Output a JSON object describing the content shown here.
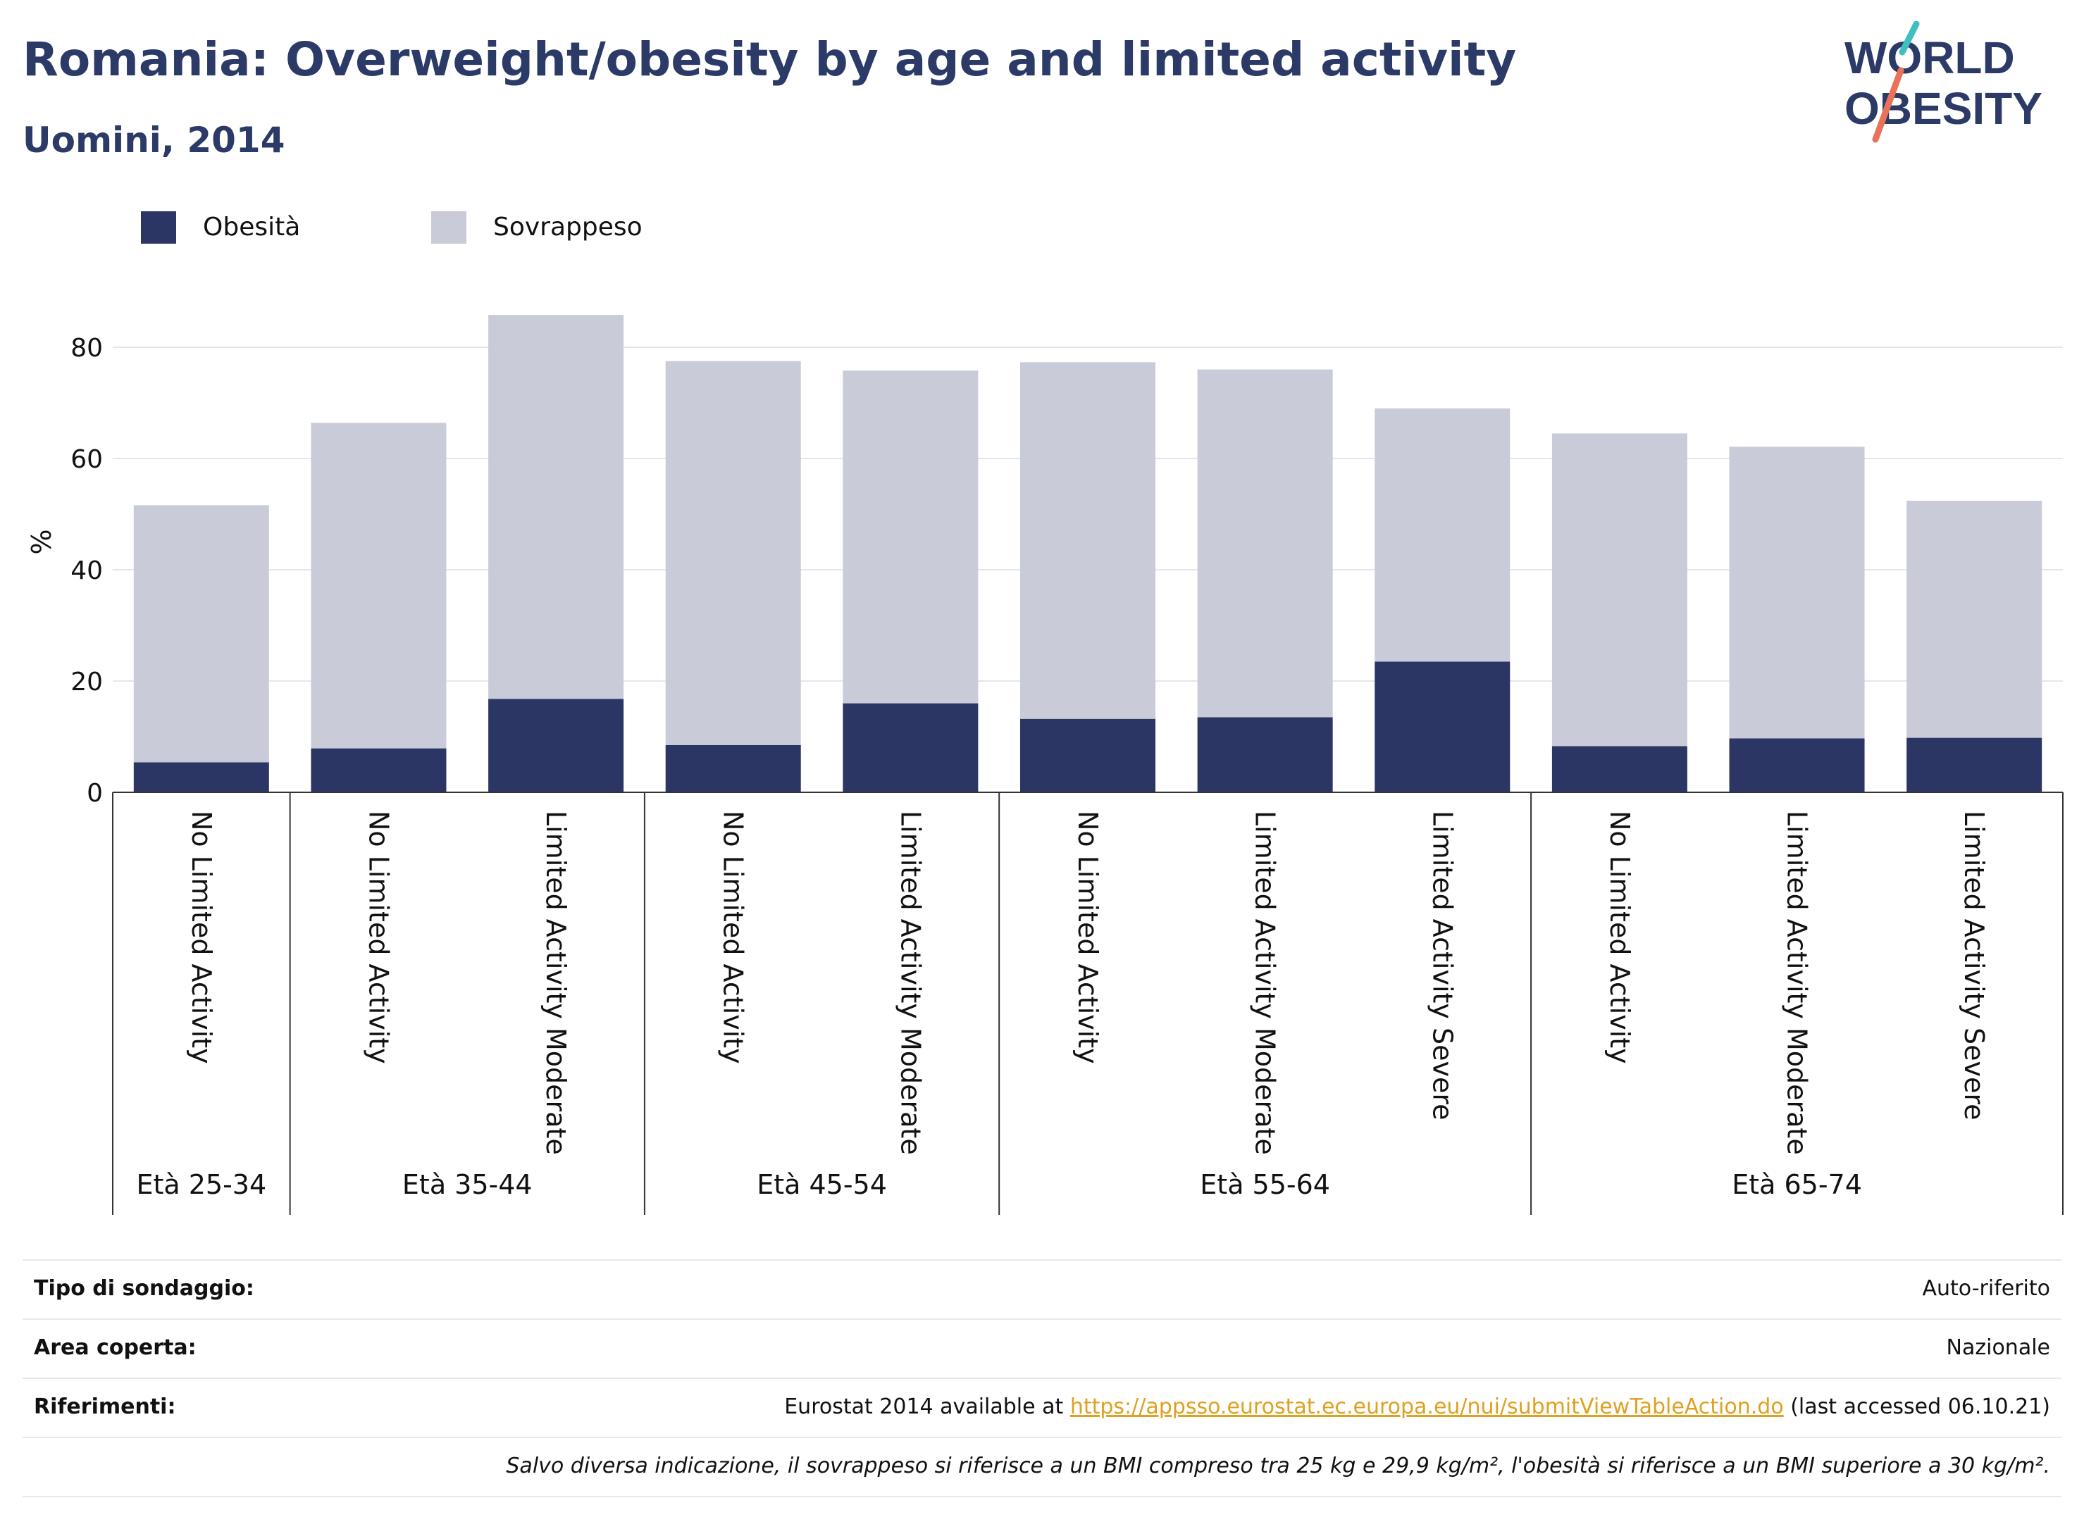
{
  "header": {
    "title": "Romania: Overweight/obesity by age and limited activity",
    "subtitle": "Uomini, 2014",
    "logo_line1": "WORLD",
    "logo_line2": "OBESITY"
  },
  "legend": {
    "items": [
      {
        "label": "Obesità",
        "color": "#2b3664"
      },
      {
        "label": "Sovrappeso",
        "color": "#c9cbd8"
      }
    ]
  },
  "chart_data": {
    "type": "bar",
    "stacked": true,
    "title": "Romania: Overweight/obesity by age and limited activity",
    "subtitle": "Uomini, 2014",
    "ylabel": "%",
    "ylim": [
      0,
      90
    ],
    "yticks": [
      0,
      20,
      40,
      60,
      80
    ],
    "grid": true,
    "legend_position": "top-left",
    "categories": [
      "No Limited Activity",
      "No Limited Activity",
      "Limited Activity Moderate",
      "No Limited Activity",
      "Limited Activity Moderate",
      "No Limited Activity",
      "Limited Activity Moderate",
      "Limited Activity Severe",
      "No Limited Activity",
      "Limited Activity Moderate",
      "Limited Activity Severe"
    ],
    "groups": [
      {
        "label": "Età 25-34",
        "count": 1
      },
      {
        "label": "Età 35-44",
        "count": 2
      },
      {
        "label": "Età 45-54",
        "count": 2
      },
      {
        "label": "Età 55-64",
        "count": 3
      },
      {
        "label": "Età 65-74",
        "count": 3
      }
    ],
    "series": [
      {
        "name": "Obesità",
        "color": "#2b3664",
        "values": [
          5.4,
          7.9,
          16.8,
          8.5,
          16.0,
          13.2,
          13.5,
          23.5,
          8.3,
          9.7,
          9.8
        ]
      },
      {
        "name": "Sovrappeso",
        "color": "#c9cbd8",
        "values": [
          46.2,
          58.5,
          69.0,
          69.0,
          59.8,
          64.1,
          62.5,
          45.5,
          56.2,
          52.4,
          42.6
        ]
      }
    ]
  },
  "footer": {
    "survey_type_label": "Tipo di sondaggio:",
    "survey_type_value": "Auto-riferito",
    "area_label": "Area coperta:",
    "area_value": "Nazionale",
    "references_label": "Riferimenti:",
    "references_prefix": "Eurostat 2014 available at ",
    "references_link": "https://appsso.eurostat.ec.europa.eu/nui/submitViewTableAction.do",
    "references_suffix": " (last accessed 06.10.21)",
    "note": "Salvo diversa indicazione, il sovrappeso si riferisce a un BMI compreso tra 25 kg e 29,9 kg/m², l'obesità si riferisce a un BMI superiore a 30 kg/m²."
  }
}
